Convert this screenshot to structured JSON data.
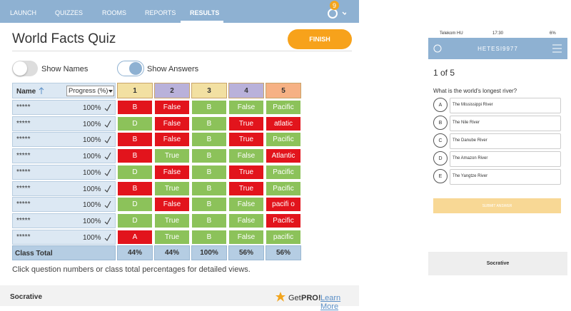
{
  "nav": {
    "items": [
      "LAUNCH",
      "QUIZZES",
      "ROOMS",
      "REPORTS",
      "RESULTS"
    ],
    "badge": "9"
  },
  "header": {
    "title": "World Facts Quiz",
    "finish": "FINISH"
  },
  "toggles": [
    "Show Names",
    "Show Answers"
  ],
  "table": {
    "name_header": "Name",
    "progress_header": "Progress (%)",
    "questions": [
      "1",
      "2",
      "3",
      "4",
      "5"
    ],
    "question_colors": [
      "#f2e0a2",
      "#b9b1da",
      "#f2e0a2",
      "#b9b1da",
      "#f6b184"
    ],
    "rows": [
      {
        "name": "*****",
        "progress": "100%",
        "answers": [
          "B",
          "False",
          "B",
          "False",
          "Pacific"
        ],
        "colors": [
          "#e2141c",
          "#e2141c",
          "#8cc25a",
          "#8cc25a",
          "#8cc25a"
        ]
      },
      {
        "name": "*****",
        "progress": "100%",
        "answers": [
          "D",
          "False",
          "B",
          "True",
          "atlatic"
        ],
        "colors": [
          "#8cc25a",
          "#e2141c",
          "#8cc25a",
          "#e2141c",
          "#e2141c"
        ]
      },
      {
        "name": "*****",
        "progress": "100%",
        "answers": [
          "B",
          "False",
          "B",
          "True",
          "Pacific"
        ],
        "colors": [
          "#e2141c",
          "#e2141c",
          "#8cc25a",
          "#e2141c",
          "#8cc25a"
        ]
      },
      {
        "name": "*****",
        "progress": "100%",
        "answers": [
          "B",
          "True",
          "B",
          "False",
          "Atlantic"
        ],
        "colors": [
          "#e2141c",
          "#8cc25a",
          "#8cc25a",
          "#8cc25a",
          "#e2141c"
        ]
      },
      {
        "name": "*****",
        "progress": "100%",
        "answers": [
          "D",
          "False",
          "B",
          "True",
          "Pacific"
        ],
        "colors": [
          "#8cc25a",
          "#e2141c",
          "#8cc25a",
          "#e2141c",
          "#8cc25a"
        ]
      },
      {
        "name": "*****",
        "progress": "100%",
        "answers": [
          "B",
          "True",
          "B",
          "True",
          "Pacific"
        ],
        "colors": [
          "#e2141c",
          "#8cc25a",
          "#8cc25a",
          "#e2141c",
          "#8cc25a"
        ]
      },
      {
        "name": "*****",
        "progress": "100%",
        "answers": [
          "D",
          "False",
          "B",
          "False",
          "pacifi o"
        ],
        "colors": [
          "#8cc25a",
          "#e2141c",
          "#8cc25a",
          "#8cc25a",
          "#e2141c"
        ]
      },
      {
        "name": "*****",
        "progress": "100%",
        "answers": [
          "D",
          "True",
          "B",
          "False",
          "Pacific"
        ],
        "colors": [
          "#8cc25a",
          "#8cc25a",
          "#8cc25a",
          "#8cc25a",
          "#e2141c"
        ]
      },
      {
        "name": "*****",
        "progress": "100%",
        "answers": [
          "A",
          "True",
          "B",
          "False",
          "pacific"
        ],
        "colors": [
          "#e2141c",
          "#8cc25a",
          "#8cc25a",
          "#8cc25a",
          "#8cc25a"
        ]
      }
    ],
    "total_label": "Class Total",
    "totals": [
      "44%",
      "44%",
      "100%",
      "56%",
      "56%"
    ]
  },
  "hint": "Click question numbers or class total percentages for detailed views.",
  "footer": {
    "brand": "Socrative",
    "get": "Get",
    "pro": "PRO!",
    "learn_more": "Learn More"
  },
  "phone": {
    "carrier": "Telekom HU",
    "time": "17:30",
    "battery": "6%",
    "room": "HETESI9977",
    "progress": "1 of 5",
    "question": "What is the world's longest river?",
    "options": [
      {
        "letter": "A",
        "text": "The Mississippi River"
      },
      {
        "letter": "B",
        "text": "The Nile River"
      },
      {
        "letter": "C",
        "text": "The Danube River"
      },
      {
        "letter": "D",
        "text": "The Amazon River"
      },
      {
        "letter": "E",
        "text": "The Yangtze River"
      }
    ],
    "submit": "SUBMIT ANSWER",
    "brand": "Socrative"
  }
}
